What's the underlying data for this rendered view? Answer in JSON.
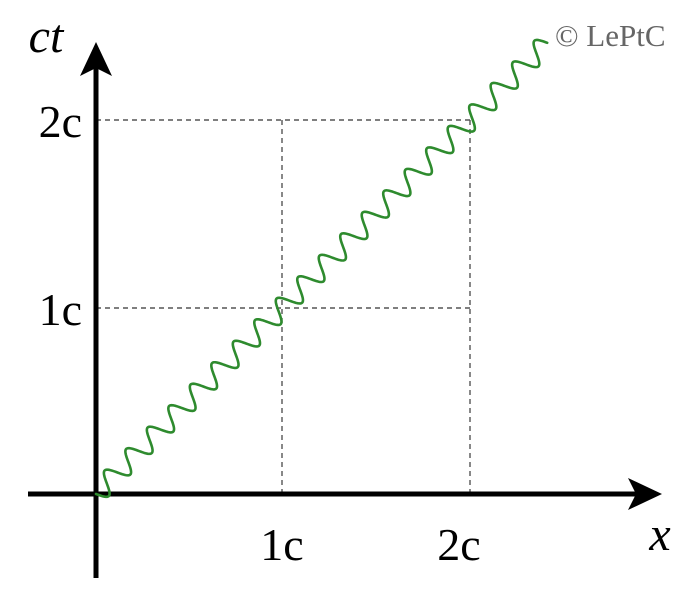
{
  "diagram": {
    "axes": {
      "horizontal_label": "x",
      "vertical_label": "ct"
    },
    "x_ticks": [
      {
        "label": "1c"
      },
      {
        "label": "2c"
      }
    ],
    "y_ticks": [
      {
        "label": "1c"
      },
      {
        "label": "2c"
      }
    ],
    "worldline": {
      "color": "#2e8b2e",
      "style": "wavy",
      "from": [
        0,
        0
      ],
      "to": [
        2.4,
        2.4
      ]
    },
    "copyright": "© LePtC"
  }
}
